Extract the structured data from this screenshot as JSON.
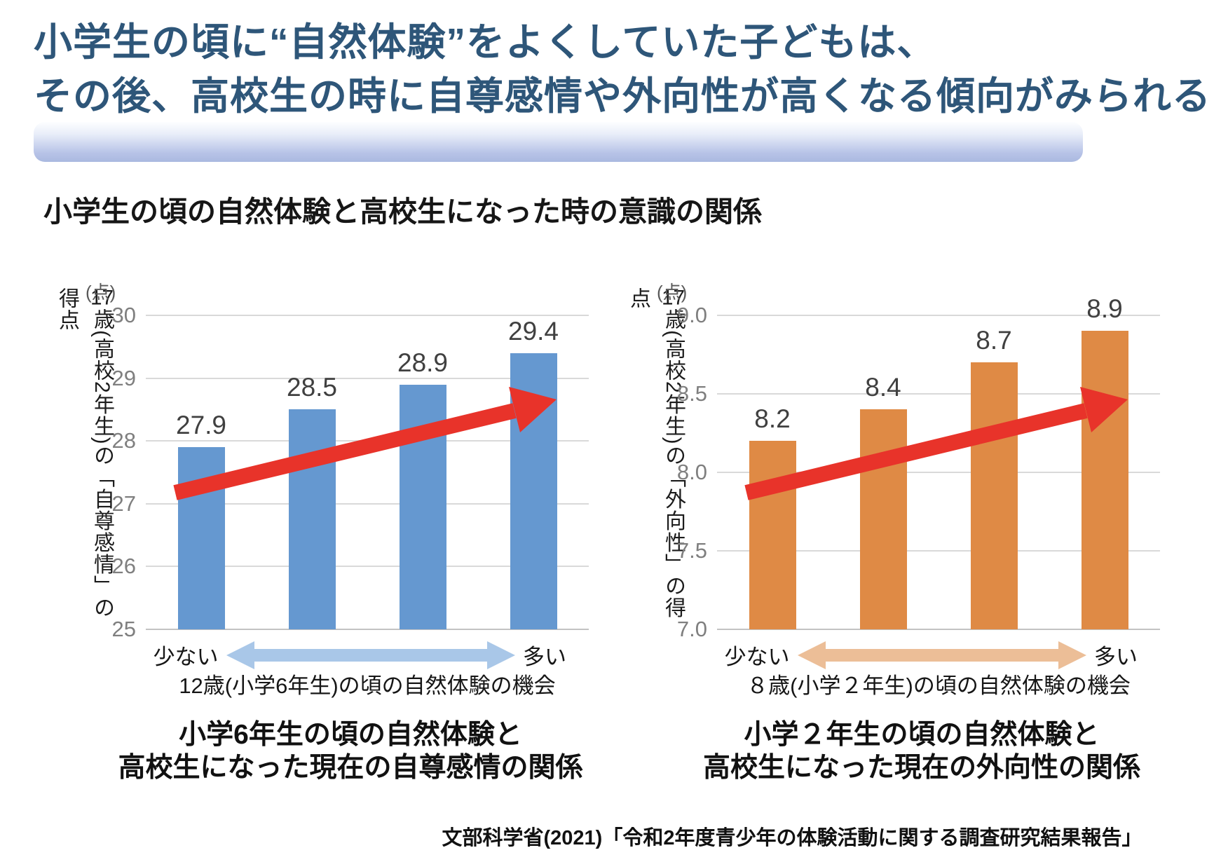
{
  "title": {
    "line1": "小学生の頃に“自然体験”をよくしていた子どもは、",
    "line2": "その後、高校生の時に自尊感情や外向性が高くなる傾向がみられる"
  },
  "subtitle": "小学生の頃の自然体験と高校生になった時の意識の関係",
  "source": "文部科学省(2021)「令和2年度青少年の体験活動に関する調査研究結果報告」",
  "colors": {
    "title_text": "#2E5679",
    "band_top": "#FDFEFF",
    "band_bottom": "#AAB9E0",
    "gridline": "#D9D9D9",
    "axis_baseline": "#C3C3C3",
    "tick_text": "#7F7F7F",
    "data_label_text": "#404040",
    "trend_arrow_red": "#E8332A"
  },
  "chart_data": [
    {
      "type": "bar",
      "unit": "(点)",
      "y_axis_title_tcy": "17",
      "y_axis_title_rest": "歳(高校2年生)の「自尊感情」の得点",
      "ylim": [
        25,
        30
      ],
      "yticks": [
        "30",
        "29",
        "28",
        "27",
        "26",
        "25"
      ],
      "values": [
        27.9,
        28.5,
        28.9,
        29.4
      ],
      "bar_labels": [
        "27.9",
        "28.5",
        "28.9",
        "29.4"
      ],
      "x_min_label": "少ない",
      "x_max_label": "多い",
      "xlabel": "12歳(小学6年生)の頃の自然体験の機会",
      "caption_line1": "小学6年生の頃の自然体験と",
      "caption_line2": "高校生になった現在の自尊感情の関係",
      "bar_color": "#6598D0",
      "range_arrow_color": "#A9C7E8",
      "trend_arrow_color": "#E8332A"
    },
    {
      "type": "bar",
      "unit": "(点)",
      "y_axis_title_tcy": "17",
      "y_axis_title_rest": "歳(高校2年生)の「外向性」の得点",
      "ylim": [
        7.0,
        9.0
      ],
      "yticks": [
        "9.0",
        "8.5",
        "8.0",
        "7.5",
        "7.0"
      ],
      "values": [
        8.2,
        8.4,
        8.7,
        8.9
      ],
      "bar_labels": [
        "8.2",
        "8.4",
        "8.7",
        "8.9"
      ],
      "x_min_label": "少ない",
      "x_max_label": "多い",
      "xlabel": "８歳(小学２年生)の頃の自然体験の機会",
      "caption_line1": "小学２年生の頃の自然体験と",
      "caption_line2": "高校生になった現在の外向性の関係",
      "bar_color": "#DF8A45",
      "range_arrow_color": "#ECBE97",
      "trend_arrow_color": "#E8332A"
    }
  ]
}
